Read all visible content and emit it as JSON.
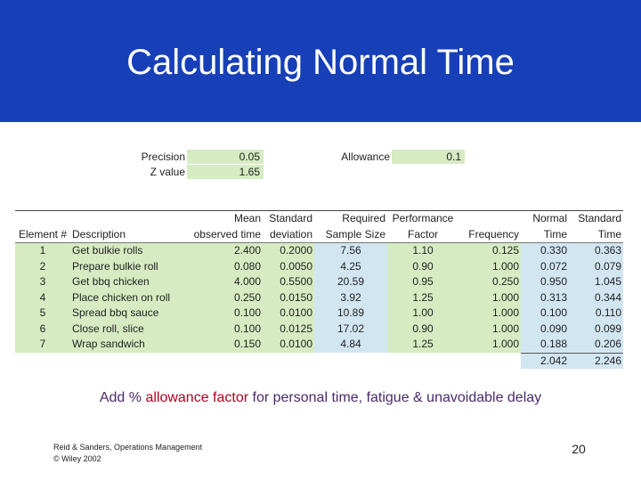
{
  "title": "Calculating Normal Time",
  "params": {
    "precision_label": "Precision",
    "precision_value": "0.05",
    "z_label": "Z value",
    "z_value": "1.65",
    "allowance_label": "Allowance",
    "allowance_value": "0.1"
  },
  "table": {
    "header_row1": [
      "",
      "",
      "Mean",
      "Standard",
      "Required",
      "Performance",
      "",
      "Normal",
      "Standard"
    ],
    "header_row2": [
      "Element #",
      "Description",
      "observed time",
      "deviation",
      "Sample Size",
      "Factor",
      "Frequency",
      "Time",
      "Time"
    ],
    "rows": [
      [
        "1",
        "Get bulkie rolls",
        "2.400",
        "0.2000",
        "7.56",
        "1.10",
        "0.125",
        "0.330",
        "0.363"
      ],
      [
        "2",
        "Prepare bulkie roll",
        "0.080",
        "0.0050",
        "4.25",
        "0.90",
        "1.000",
        "0.072",
        "0.079"
      ],
      [
        "3",
        "Get bbq chicken",
        "4.000",
        "0.5500",
        "20.59",
        "0.95",
        "0.250",
        "0.950",
        "1.045"
      ],
      [
        "4",
        "Place chicken on roll",
        "0.250",
        "0.0150",
        "3.92",
        "1.25",
        "1.000",
        "0.313",
        "0.344"
      ],
      [
        "5",
        "Spread bbq sauce",
        "0.100",
        "0.0100",
        "10.89",
        "1.00",
        "1.000",
        "0.100",
        "0.110"
      ],
      [
        "6",
        "Close roll, slice",
        "0.100",
        "0.0125",
        "17.02",
        "0.90",
        "1.000",
        "0.090",
        "0.099"
      ],
      [
        "7",
        "Wrap sandwich",
        "0.150",
        "0.0100",
        "4.84",
        "1.25",
        "1.000",
        "0.188",
        "0.206"
      ]
    ],
    "totals": [
      "2.042",
      "2.246"
    ]
  },
  "note": {
    "prefix": "Add % ",
    "highlight": "allowance factor",
    "suffix": " for personal time, fatigue & unavoidable delay"
  },
  "footer": {
    "line1": "Reid & Sanders, Operations Management",
    "line2": "© Wiley 2002"
  },
  "page_number": "20"
}
